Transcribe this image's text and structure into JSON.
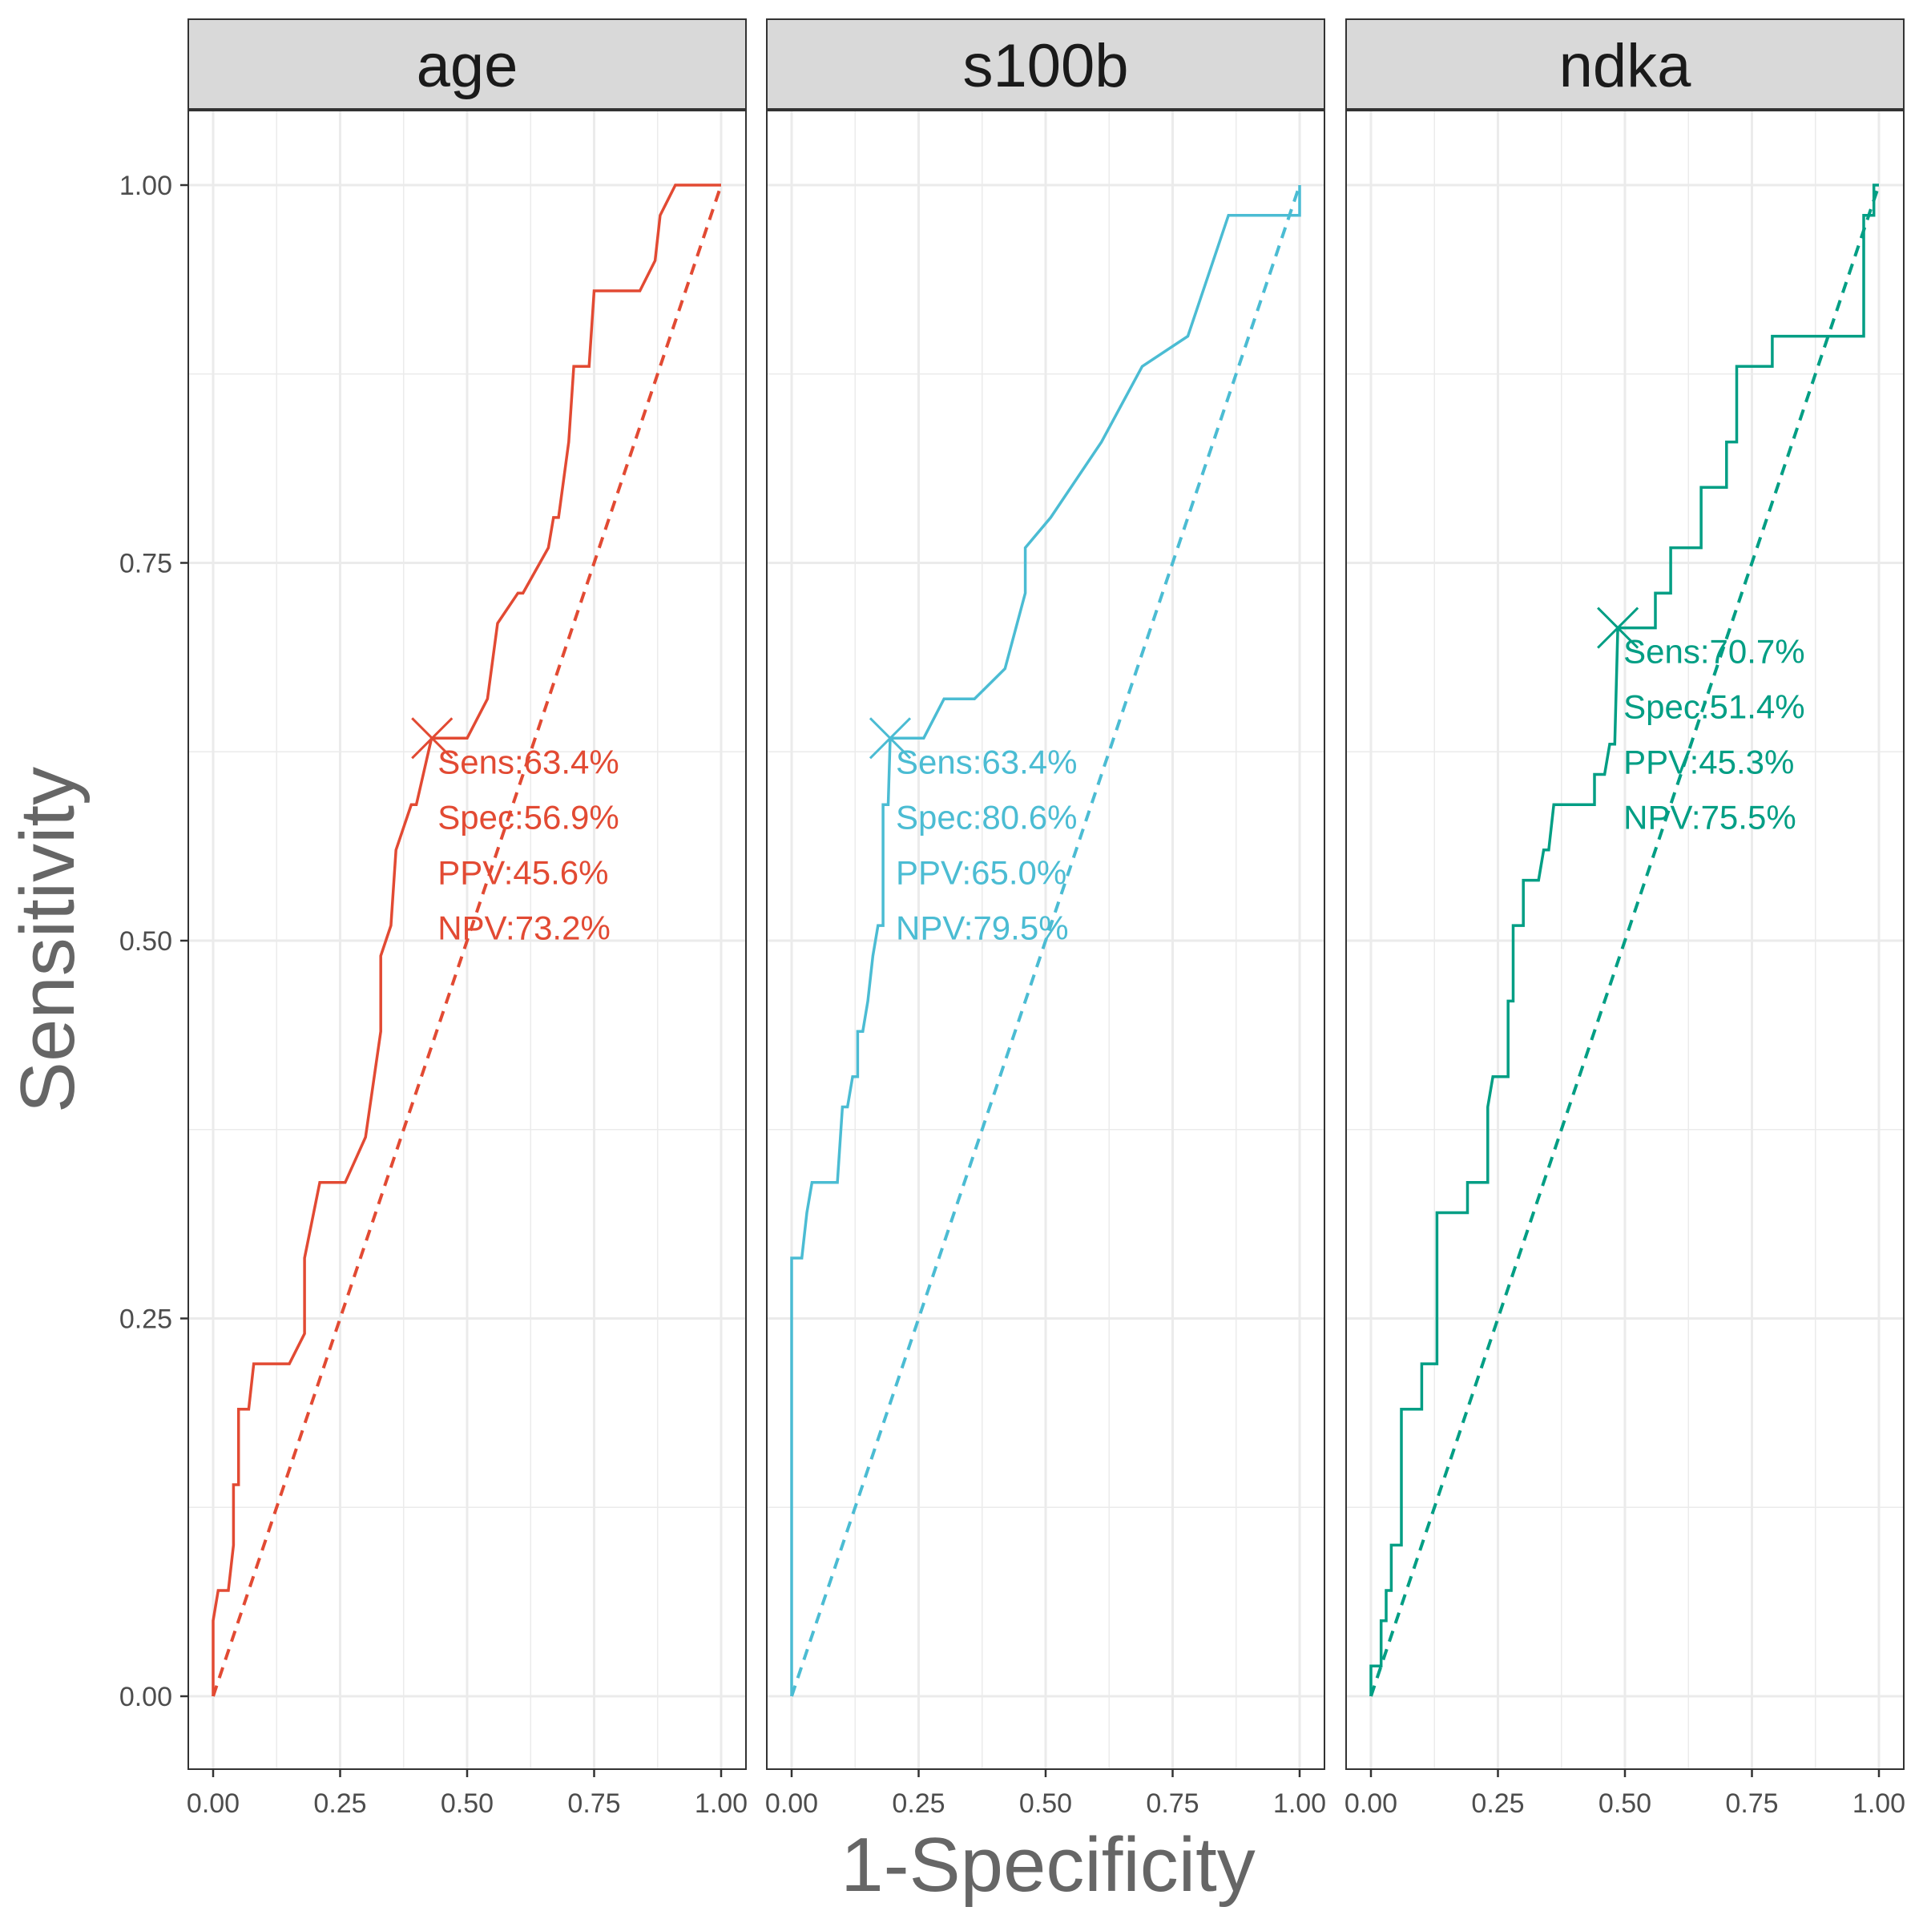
{
  "chart_data": {
    "type": "line",
    "xlabel": "1-Specificity",
    "ylabel": "Sensitivity",
    "xlim": [
      0,
      1
    ],
    "ylim": [
      0,
      1
    ],
    "x_ticks": [
      "0.00",
      "0.25",
      "0.50",
      "0.75",
      "1.00"
    ],
    "y_ticks": [
      "0.00",
      "0.25",
      "0.50",
      "0.75",
      "1.00"
    ],
    "grid": true,
    "legend": "none",
    "panels": [
      {
        "name": "age",
        "color": "#e24a33",
        "roc": [
          [
            0,
            0
          ],
          [
            0,
            0.05
          ],
          [
            0.01,
            0.07
          ],
          [
            0.03,
            0.07
          ],
          [
            0.04,
            0.1
          ],
          [
            0.04,
            0.14
          ],
          [
            0.05,
            0.14
          ],
          [
            0.05,
            0.19
          ],
          [
            0.07,
            0.19
          ],
          [
            0.08,
            0.22
          ],
          [
            0.15,
            0.22
          ],
          [
            0.18,
            0.24
          ],
          [
            0.18,
            0.29
          ],
          [
            0.21,
            0.34
          ],
          [
            0.26,
            0.34
          ],
          [
            0.3,
            0.37
          ],
          [
            0.33,
            0.44
          ],
          [
            0.33,
            0.49
          ],
          [
            0.35,
            0.51
          ],
          [
            0.36,
            0.56
          ],
          [
            0.39,
            0.59
          ],
          [
            0.4,
            0.59
          ],
          [
            0.43,
            0.634
          ],
          [
            0.5,
            0.634
          ],
          [
            0.54,
            0.66
          ],
          [
            0.56,
            0.71
          ],
          [
            0.6,
            0.73
          ],
          [
            0.61,
            0.73
          ],
          [
            0.66,
            0.76
          ],
          [
            0.67,
            0.78
          ],
          [
            0.68,
            0.78
          ],
          [
            0.7,
            0.83
          ],
          [
            0.71,
            0.88
          ],
          [
            0.74,
            0.88
          ],
          [
            0.75,
            0.93
          ],
          [
            0.84,
            0.93
          ],
          [
            0.87,
            0.95
          ],
          [
            0.88,
            0.98
          ],
          [
            0.91,
            1.0
          ],
          [
            1.0,
            1.0
          ]
        ],
        "optimal_point": [
          0.431,
          0.634
        ],
        "annotations": [
          "Sens:63.4%",
          "Spec:56.9%",
          "PPV:45.6%",
          "NPV:73.2%"
        ]
      },
      {
        "name": "s100b",
        "color": "#4bbcd3",
        "roc": [
          [
            0,
            0
          ],
          [
            0,
            0.29
          ],
          [
            0.02,
            0.29
          ],
          [
            0.03,
            0.32
          ],
          [
            0.04,
            0.34
          ],
          [
            0.09,
            0.34
          ],
          [
            0.1,
            0.39
          ],
          [
            0.11,
            0.39
          ],
          [
            0.12,
            0.41
          ],
          [
            0.13,
            0.41
          ],
          [
            0.13,
            0.44
          ],
          [
            0.14,
            0.44
          ],
          [
            0.15,
            0.46
          ],
          [
            0.16,
            0.49
          ],
          [
            0.17,
            0.51
          ],
          [
            0.18,
            0.51
          ],
          [
            0.18,
            0.59
          ],
          [
            0.19,
            0.59
          ],
          [
            0.194,
            0.634
          ],
          [
            0.26,
            0.634
          ],
          [
            0.3,
            0.66
          ],
          [
            0.36,
            0.66
          ],
          [
            0.42,
            0.68
          ],
          [
            0.46,
            0.73
          ],
          [
            0.46,
            0.76
          ],
          [
            0.51,
            0.78
          ],
          [
            0.61,
            0.83
          ],
          [
            0.69,
            0.88
          ],
          [
            0.78,
            0.9
          ],
          [
            0.86,
            0.98
          ],
          [
            1.0,
            0.98
          ],
          [
            1.0,
            1.0
          ]
        ],
        "optimal_point": [
          0.194,
          0.634
        ],
        "annotations": [
          "Sens:63.4%",
          "Spec:80.6%",
          "PPV:65.0%",
          "NPV:79.5%"
        ]
      },
      {
        "name": "ndka",
        "color": "#009e84",
        "roc": [
          [
            0,
            0
          ],
          [
            0,
            0.02
          ],
          [
            0.02,
            0.02
          ],
          [
            0.02,
            0.05
          ],
          [
            0.03,
            0.05
          ],
          [
            0.03,
            0.07
          ],
          [
            0.04,
            0.07
          ],
          [
            0.04,
            0.1
          ],
          [
            0.06,
            0.1
          ],
          [
            0.06,
            0.19
          ],
          [
            0.1,
            0.19
          ],
          [
            0.1,
            0.22
          ],
          [
            0.13,
            0.22
          ],
          [
            0.13,
            0.32
          ],
          [
            0.19,
            0.32
          ],
          [
            0.19,
            0.34
          ],
          [
            0.23,
            0.34
          ],
          [
            0.23,
            0.39
          ],
          [
            0.24,
            0.41
          ],
          [
            0.27,
            0.41
          ],
          [
            0.27,
            0.46
          ],
          [
            0.28,
            0.46
          ],
          [
            0.28,
            0.51
          ],
          [
            0.3,
            0.51
          ],
          [
            0.3,
            0.54
          ],
          [
            0.33,
            0.54
          ],
          [
            0.34,
            0.56
          ],
          [
            0.35,
            0.56
          ],
          [
            0.36,
            0.59
          ],
          [
            0.44,
            0.59
          ],
          [
            0.44,
            0.61
          ],
          [
            0.46,
            0.61
          ],
          [
            0.47,
            0.63
          ],
          [
            0.48,
            0.63
          ],
          [
            0.486,
            0.707
          ],
          [
            0.56,
            0.707
          ],
          [
            0.56,
            0.73
          ],
          [
            0.59,
            0.73
          ],
          [
            0.59,
            0.76
          ],
          [
            0.65,
            0.76
          ],
          [
            0.65,
            0.8
          ],
          [
            0.7,
            0.8
          ],
          [
            0.7,
            0.83
          ],
          [
            0.72,
            0.83
          ],
          [
            0.72,
            0.88
          ],
          [
            0.79,
            0.88
          ],
          [
            0.79,
            0.9
          ],
          [
            0.97,
            0.9
          ],
          [
            0.97,
            0.98
          ],
          [
            0.99,
            0.98
          ],
          [
            0.99,
            1.0
          ],
          [
            1.0,
            1.0
          ]
        ],
        "optimal_point": [
          0.486,
          0.707
        ],
        "annotations": [
          "Sens:70.7%",
          "Spec:51.4%",
          "PPV:45.3%",
          "NPV:75.5%"
        ]
      }
    ]
  }
}
